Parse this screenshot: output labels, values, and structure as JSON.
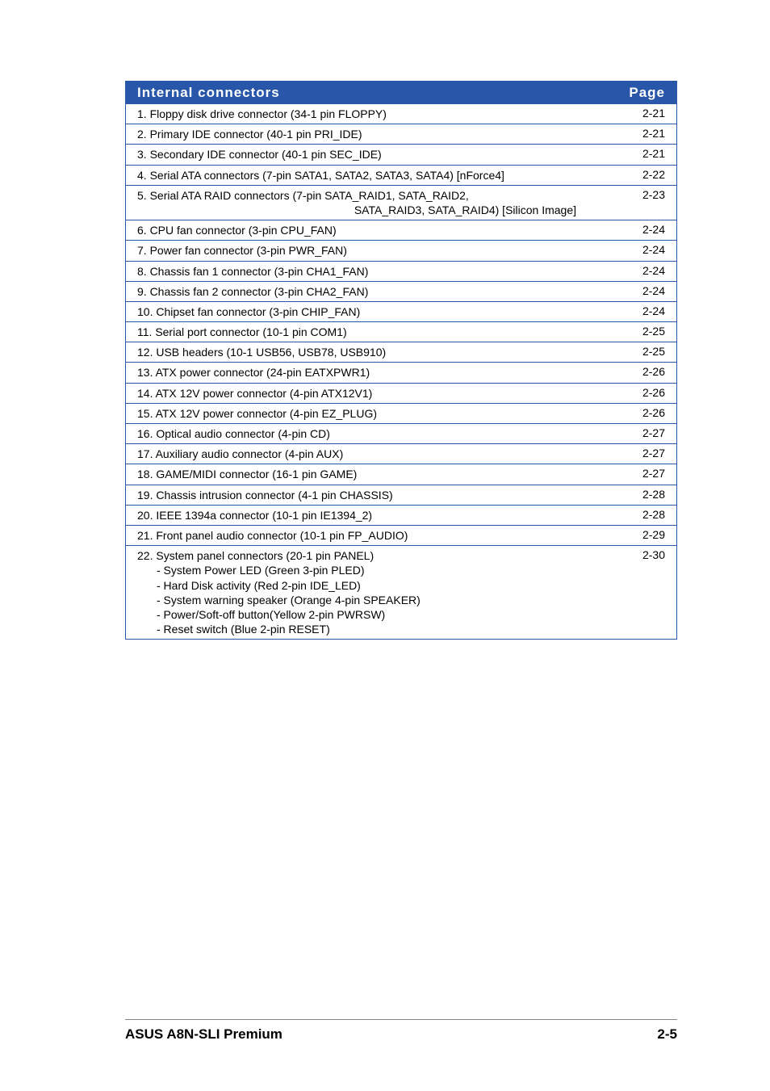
{
  "header": {
    "title": "Internal connectors",
    "pageCol": "Page"
  },
  "rows": [
    {
      "text": "1. Floppy disk drive connector (34-1 pin FLOPPY)",
      "page": "2-21"
    },
    {
      "text": "2. Primary IDE connector (40-1 pin PRI_IDE)",
      "page": "2-21"
    },
    {
      "text": "3. Secondary IDE connector (40-1 pin SEC_IDE)",
      "page": "2-21"
    },
    {
      "text": "4. Serial ATA connectors (7-pin SATA1, SATA2, SATA3, SATA4) [nForce4]",
      "page": "2-22"
    },
    {
      "text": "5. Serial ATA RAID connectors (7-pin SATA_RAID1, SATA_RAID2,",
      "subRight": "SATA_RAID3, SATA_RAID4) [Silicon Image]",
      "page": "2-23"
    },
    {
      "text": "6. CPU fan connector (3-pin CPU_FAN)",
      "page": "2-24"
    },
    {
      "text": "7. Power fan connector (3-pin PWR_FAN)",
      "page": "2-24"
    },
    {
      "text": "8. Chassis fan 1 connector (3-pin CHA1_FAN)",
      "page": "2-24"
    },
    {
      "text": "9. Chassis fan 2 connector (3-pin CHA2_FAN)",
      "page": "2-24"
    },
    {
      "text": "10. Chipset fan connector (3-pin CHIP_FAN)",
      "page": "2-24"
    },
    {
      "text": "11. Serial port connector (10-1 pin COM1)",
      "page": "2-25"
    },
    {
      "text": "12. USB headers (10-1 USB56, USB78, USB910)",
      "page": "2-25"
    },
    {
      "text": "13. ATX power connector (24-pin EATXPWR1)",
      "page": "2-26"
    },
    {
      "text": "14. ATX 12V power connector (4-pin ATX12V1)",
      "page": "2-26"
    },
    {
      "text": "15. ATX 12V power connector (4-pin EZ_PLUG)",
      "page": "2-26"
    },
    {
      "text": "16. Optical audio connector (4-pin CD)",
      "page": "2-27"
    },
    {
      "text": "17. Auxiliary audio connector (4-pin AUX)",
      "page": "2-27"
    },
    {
      "text": "18. GAME/MIDI connector (16-1 pin GAME)",
      "page": "2-27"
    },
    {
      "text": "19. Chassis intrusion connector (4-1 pin CHASSIS)",
      "page": "2-28"
    },
    {
      "text": "20. IEEE 1394a connector (10-1 pin IE1394_2)",
      "page": "2-28"
    },
    {
      "text": "21. Front panel audio connector (10-1 pin FP_AUDIO)",
      "page": "2-29"
    },
    {
      "text": "22. System panel connectors (20-1 pin PANEL)",
      "page": "2-30",
      "subs": [
        "- System Power LED (Green 3-pin PLED)",
        "- Hard Disk activity (Red 2-pin IDE_LED)",
        "- System warning speaker (Orange 4-pin SPEAKER)",
        "- Power/Soft-off button(Yellow 2-pin PWRSW)",
        "- Reset switch (Blue 2-pin RESET)"
      ]
    }
  ],
  "footer": {
    "left": "ASUS A8N-SLI Premium",
    "right": "2-5"
  },
  "colors": {
    "headerBg": "#2856a8",
    "headerText": "#ffffff",
    "border": "#2856a8",
    "text": "#000000"
  }
}
